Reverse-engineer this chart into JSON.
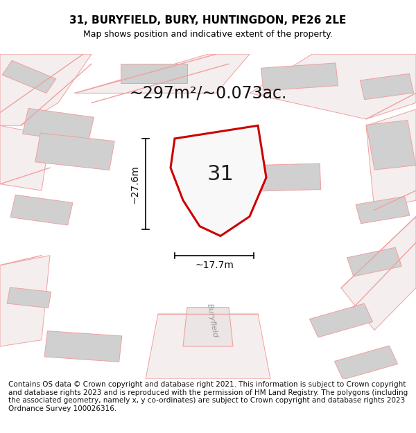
{
  "title": "31, BURYFIELD, BURY, HUNTINGDON, PE26 2LE",
  "subtitle": "Map shows position and indicative extent of the property.",
  "area_text": "~297m²/~0.073ac.",
  "width_text": "~17.7m",
  "height_text": "~27.6m",
  "plot_number": "31",
  "street_name": "Buryfield",
  "footer_text": "Contains OS data © Crown copyright and database right 2021. This information is subject to Crown copyright and database rights 2023 and is reproduced with the permission of HM Land Registry. The polygons (including the associated geometry, namely x, y co-ordinates) are subject to Crown copyright and database rights 2023 Ordnance Survey 100026316.",
  "map_bg": "#ffffff",
  "plot_stroke": "#cc0000",
  "pink_line": "#f0a0a0",
  "light_gray": "#d0d0d0",
  "road_color": "#f5eeee",
  "title_fontsize": 11,
  "subtitle_fontsize": 9,
  "area_fontsize": 17,
  "plot_label_fontsize": 22,
  "footer_fontsize": 7.5
}
